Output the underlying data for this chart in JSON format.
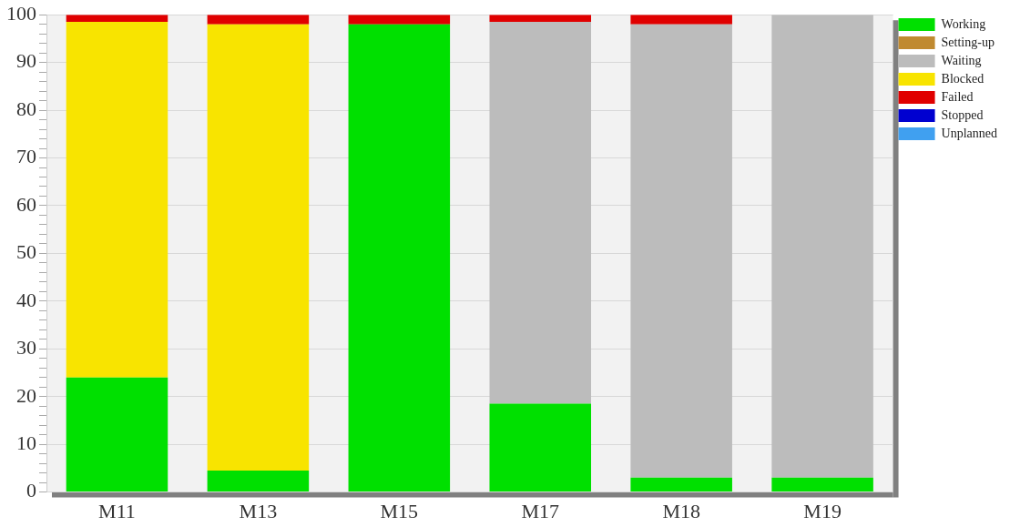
{
  "chart_data": {
    "type": "bar",
    "stacked": true,
    "categories": [
      "M11",
      "M13",
      "M15",
      "M17",
      "M18",
      "M19"
    ],
    "series": [
      {
        "name": "Working",
        "color": "#00e000",
        "values": [
          24,
          4.5,
          98,
          18.5,
          3,
          3
        ]
      },
      {
        "name": "Setting-up",
        "color": "#c08a30",
        "values": [
          0,
          0,
          0,
          0,
          0,
          0
        ]
      },
      {
        "name": "Waiting",
        "color": "#bcbcbc",
        "values": [
          0,
          0,
          0,
          80,
          95,
          97
        ]
      },
      {
        "name": "Blocked",
        "color": "#f8e400",
        "values": [
          74.5,
          93.5,
          0,
          0,
          0,
          0
        ]
      },
      {
        "name": "Failed",
        "color": "#e00000",
        "values": [
          1.5,
          2,
          2,
          1.5,
          2,
          0
        ]
      },
      {
        "name": "Stopped",
        "color": "#0000d0",
        "values": [
          0,
          0,
          0,
          0,
          0,
          0
        ]
      },
      {
        "name": "Unplanned",
        "color": "#40a0f0",
        "values": [
          0,
          0,
          0,
          0,
          0,
          0
        ]
      }
    ],
    "ylim": [
      0,
      100
    ],
    "yticks": [
      0,
      {
        "value": 2,
        "label": null
      },
      {
        "value": 4,
        "label": null
      },
      {
        "value": 6,
        "label": null
      },
      {
        "value": 8,
        "label": null
      },
      10,
      {
        "value": 12,
        "label": null
      },
      {
        "value": 14,
        "label": null
      },
      {
        "value": 16,
        "label": null
      },
      {
        "value": 18,
        "label": null
      },
      20,
      {
        "value": 22,
        "label": null
      },
      {
        "value": 24,
        "label": null
      },
      {
        "value": 26,
        "label": null
      },
      {
        "value": 28,
        "label": null
      },
      30,
      {
        "value": 32,
        "label": null
      },
      {
        "value": 34,
        "label": null
      },
      {
        "value": 36,
        "label": null
      },
      {
        "value": 38,
        "label": null
      },
      40,
      {
        "value": 42,
        "label": null
      },
      {
        "value": 44,
        "label": null
      },
      {
        "value": 46,
        "label": null
      },
      {
        "value": 48,
        "label": null
      },
      50,
      {
        "value": 52,
        "label": null
      },
      {
        "value": 54,
        "label": null
      },
      {
        "value": 56,
        "label": null
      },
      {
        "value": 58,
        "label": null
      },
      60,
      {
        "value": 62,
        "label": null
      },
      {
        "value": 64,
        "label": null
      },
      {
        "value": 66,
        "label": null
      },
      {
        "value": 68,
        "label": null
      },
      70,
      {
        "value": 72,
        "label": null
      },
      {
        "value": 74,
        "label": null
      },
      {
        "value": 76,
        "label": null
      },
      {
        "value": 78,
        "label": null
      },
      80,
      {
        "value": 82,
        "label": null
      },
      {
        "value": 84,
        "label": null
      },
      {
        "value": 86,
        "label": null
      },
      {
        "value": 88,
        "label": null
      },
      90,
      {
        "value": 92,
        "label": null
      },
      {
        "value": 94,
        "label": null
      },
      {
        "value": 96,
        "label": null
      },
      {
        "value": 98,
        "label": null
      },
      100
    ],
    "grid": "y",
    "legend": "right"
  }
}
